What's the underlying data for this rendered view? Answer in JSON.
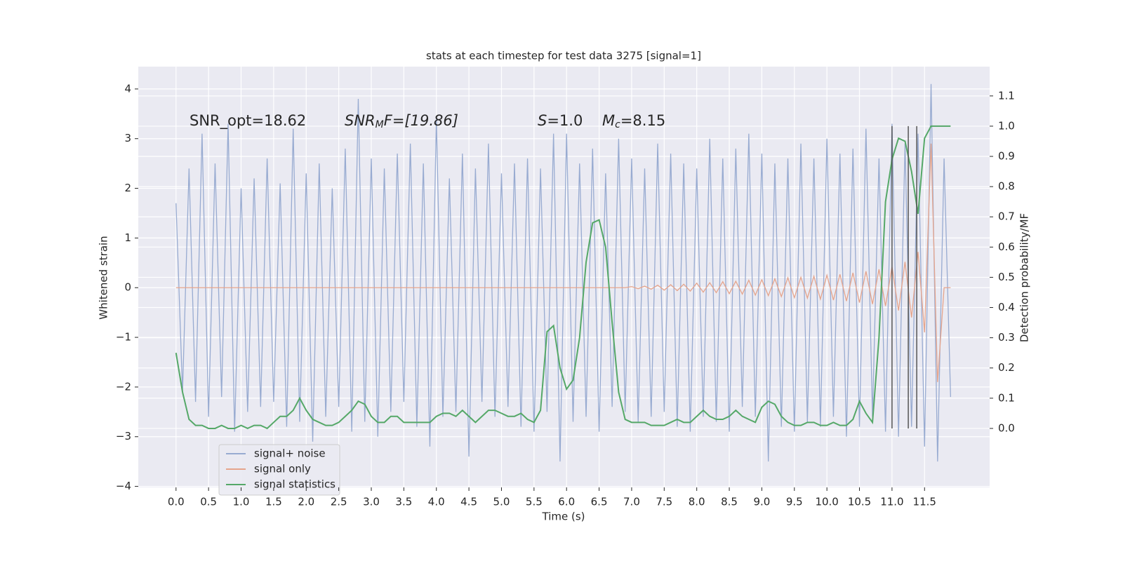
{
  "chart_data": {
    "type": "line",
    "title": "stats at each timestep for test data 3275 [signal=1]",
    "xlabel": "Time (s)",
    "ylabel": "Whitened strain",
    "y2label": "Detection probability/MF",
    "annotations": [
      [
        "SNR_opt=18.62"
      ],
      [
        "SNR",
        "M",
        "F=[19.86]"
      ],
      [
        "S",
        "=1.0"
      ],
      [
        "M",
        "c",
        "=8.15"
      ]
    ],
    "xlim": [
      -0.58,
      12.5
    ],
    "ylim": [
      -4.02,
      4.45
    ],
    "y2lim": [
      -0.195,
      1.197
    ],
    "xticks": [
      {
        "value": 0,
        "label": "0.0"
      },
      0.5,
      {
        "value": 1,
        "label": "1.0"
      },
      1.5,
      {
        "value": 2,
        "label": "2.0"
      },
      2.5,
      {
        "value": 3,
        "label": "3.0"
      },
      3.5,
      {
        "value": 4,
        "label": "4.0"
      },
      4.5,
      {
        "value": 5,
        "label": "5.0"
      },
      5.5,
      {
        "value": 6,
        "label": "6.0"
      },
      6.5,
      {
        "value": 7,
        "label": "7.0"
      },
      7.5,
      {
        "value": 8,
        "label": "8.0"
      },
      8.5,
      {
        "value": 9,
        "label": "9.0"
      },
      9.5,
      {
        "value": 10,
        "label": "10.0"
      },
      10.5,
      {
        "value": 11,
        "label": "11.0"
      },
      11.5
    ],
    "yticks": [
      {
        "value": -4,
        "label": "−4"
      },
      {
        "value": -3,
        "label": "−3"
      },
      {
        "value": -2,
        "label": "−2"
      },
      {
        "value": -1,
        "label": "−1"
      },
      0,
      1,
      2,
      3,
      4
    ],
    "y2ticks": [
      {
        "value": 0,
        "label": "0.0"
      },
      0.1,
      0.2,
      0.3,
      0.4,
      0.5,
      0.6,
      0.7,
      0.8,
      0.9,
      {
        "value": 1,
        "label": "1.0"
      },
      1.1
    ],
    "grid": true,
    "legend": "lower left",
    "vlines": [
      11.0,
      11.25,
      11.38
    ],
    "vline_range": [
      0,
      1
    ],
    "vline_color": "#555555",
    "x": [
      0,
      0.1,
      0.2,
      0.3,
      0.4,
      0.5,
      0.6,
      0.7,
      0.8,
      0.9,
      1,
      1.1,
      1.2,
      1.3,
      1.4,
      1.5,
      1.6,
      1.7,
      1.8,
      1.9,
      2,
      2.1,
      2.2,
      2.3,
      2.4,
      2.5,
      2.6,
      2.7,
      2.8,
      2.9,
      3,
      3.1,
      3.2,
      3.3,
      3.4,
      3.5,
      3.6,
      3.7,
      3.8,
      3.9,
      4,
      4.1,
      4.2,
      4.3,
      4.4,
      4.5,
      4.6,
      4.7,
      4.8,
      4.9,
      5,
      5.1,
      5.2,
      5.3,
      5.4,
      5.5,
      5.6,
      5.7,
      5.8,
      5.9,
      6,
      6.1,
      6.2,
      6.3,
      6.4,
      6.5,
      6.6,
      6.7,
      6.8,
      6.9,
      7,
      7.1,
      7.2,
      7.3,
      7.4,
      7.5,
      7.6,
      7.7,
      7.8,
      7.9,
      8,
      8.1,
      8.2,
      8.3,
      8.4,
      8.5,
      8.6,
      8.7,
      8.8,
      8.9,
      9,
      9.1,
      9.2,
      9.3,
      9.4,
      9.5,
      9.6,
      9.7,
      9.8,
      9.9,
      10,
      10.1,
      10.2,
      10.3,
      10.4,
      10.5,
      10.6,
      10.7,
      10.8,
      10.9,
      11,
      11.1,
      11.2,
      11.3,
      11.4,
      11.5,
      11.6,
      11.7,
      11.8,
      11.9
    ],
    "series": [
      {
        "name": "signal+ noise",
        "color": "#98abd1",
        "values": [
          1.7,
          -2.1,
          2.4,
          -2.3,
          3.1,
          -2.6,
          2.5,
          -2.2,
          3.3,
          -2.9,
          2.0,
          -2.5,
          2.2,
          -2.4,
          2.6,
          -2.3,
          2.1,
          -2.8,
          3.2,
          -2.7,
          2.3,
          -3.1,
          2.5,
          -2.6,
          2.0,
          -2.4,
          2.8,
          -2.9,
          3.8,
          -2.7,
          2.6,
          -3.0,
          2.4,
          -2.5,
          2.7,
          -2.3,
          2.9,
          -2.8,
          2.5,
          -3.2,
          3.4,
          -2.6,
          2.2,
          -2.5,
          2.7,
          -3.4,
          2.4,
          -2.3,
          2.9,
          -2.6,
          2.3,
          -2.4,
          2.5,
          -2.8,
          2.6,
          -2.9,
          2.4,
          -2.5,
          3.1,
          -3.5,
          3.1,
          -2.7,
          2.5,
          -2.6,
          2.8,
          -2.9,
          2.3,
          -2.4,
          3.0,
          -2.5,
          2.6,
          -2.7,
          2.4,
          -2.6,
          2.9,
          -2.5,
          2.7,
          -2.8,
          2.5,
          -2.9,
          2.4,
          -2.6,
          3.0,
          -2.7,
          2.6,
          -2.9,
          2.8,
          -2.4,
          3.1,
          -2.6,
          2.7,
          -3.5,
          2.5,
          -2.8,
          2.6,
          -2.9,
          2.9,
          -2.7,
          2.6,
          -2.8,
          3.0,
          -2.6,
          2.7,
          -3.0,
          2.8,
          -2.8,
          3.2,
          -2.6,
          2.6,
          -2.9,
          3.3,
          -3.0,
          2.9,
          -2.8,
          3.1,
          -3.2,
          4.1,
          -3.5,
          2.6,
          -2.2
        ]
      },
      {
        "name": "signal only",
        "color": "#e5a48c",
        "values": [
          0,
          0,
          0,
          0,
          0,
          0,
          0,
          0,
          0,
          0,
          0,
          0,
          0,
          0,
          0,
          0,
          0,
          0,
          0,
          0,
          0,
          0,
          0,
          0,
          0,
          0,
          0,
          0,
          0,
          0,
          0,
          0,
          0,
          0,
          0,
          0,
          0,
          0,
          0,
          0,
          0,
          0,
          0,
          0,
          0,
          0,
          0,
          0,
          0,
          0,
          0,
          0,
          0,
          0,
          0,
          0,
          0,
          0,
          0,
          0,
          0,
          0,
          0,
          0,
          0,
          0,
          0,
          0,
          0,
          0,
          0.02,
          -0.02,
          0.03,
          -0.03,
          0.05,
          -0.05,
          0.06,
          -0.06,
          0.07,
          -0.07,
          0.09,
          -0.09,
          0.1,
          -0.1,
          0.12,
          -0.12,
          0.13,
          -0.13,
          0.15,
          -0.15,
          0.16,
          -0.16,
          0.18,
          -0.18,
          0.2,
          -0.2,
          0.21,
          -0.21,
          0.23,
          -0.23,
          0.25,
          -0.25,
          0.27,
          -0.27,
          0.3,
          -0.3,
          0.33,
          -0.33,
          0.37,
          -0.37,
          0.42,
          -0.46,
          0.52,
          -0.6,
          0.72,
          -0.9,
          2.9,
          -1.9,
          0,
          0
        ]
      },
      {
        "name": "signal statistics",
        "color": "#55a868",
        "axis": "y2",
        "values": [
          0.25,
          0.12,
          0.03,
          0.01,
          0.01,
          0.0,
          0.0,
          0.01,
          0.0,
          0.0,
          0.01,
          0.0,
          0.01,
          0.01,
          0.0,
          0.02,
          0.04,
          0.04,
          0.06,
          0.1,
          0.06,
          0.03,
          0.02,
          0.01,
          0.01,
          0.02,
          0.04,
          0.06,
          0.09,
          0.08,
          0.04,
          0.02,
          0.02,
          0.04,
          0.04,
          0.02,
          0.02,
          0.02,
          0.02,
          0.02,
          0.04,
          0.05,
          0.05,
          0.04,
          0.06,
          0.04,
          0.02,
          0.04,
          0.06,
          0.06,
          0.05,
          0.04,
          0.04,
          0.05,
          0.03,
          0.02,
          0.06,
          0.32,
          0.34,
          0.2,
          0.13,
          0.16,
          0.3,
          0.55,
          0.68,
          0.69,
          0.6,
          0.35,
          0.12,
          0.03,
          0.02,
          0.02,
          0.02,
          0.01,
          0.01,
          0.01,
          0.02,
          0.03,
          0.02,
          0.02,
          0.04,
          0.06,
          0.04,
          0.03,
          0.03,
          0.04,
          0.06,
          0.04,
          0.03,
          0.02,
          0.07,
          0.09,
          0.08,
          0.04,
          0.02,
          0.01,
          0.01,
          0.02,
          0.02,
          0.01,
          0.01,
          0.02,
          0.01,
          0.01,
          0.03,
          0.09,
          0.05,
          0.02,
          0.3,
          0.75,
          0.89,
          0.96,
          0.95,
          0.85,
          0.71,
          0.96,
          1.0,
          1.0,
          1.0,
          1.0
        ]
      }
    ]
  }
}
